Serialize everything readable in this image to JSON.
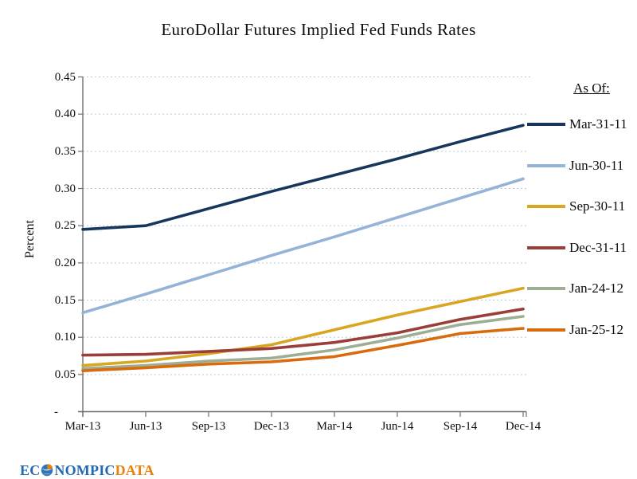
{
  "legend": {
    "header": "As Of:"
  },
  "logo": {
    "part1": "EC",
    "part2": "NOMPIC",
    "part3": "DATA",
    "blue": "#2268B2",
    "orange": "#E8820C"
  },
  "chart_data": {
    "type": "line",
    "title": "EuroDollar Futures Implied Fed Funds Rates",
    "xlabel": "",
    "ylabel": "Percent",
    "categories": [
      "Mar-13",
      "Jun-13",
      "Sep-13",
      "Dec-13",
      "Mar-14",
      "Jun-14",
      "Sep-14",
      "Dec-14"
    ],
    "ylim": [
      0,
      0.45
    ],
    "ytick_step": 0.05,
    "ytick_labels": [
      "0.45",
      "0.40",
      "0.35",
      "0.30",
      "0.25",
      "0.20",
      "0.15",
      "0.10",
      "0.05",
      "-"
    ],
    "grid": true,
    "gridline_color": "#AFCBE2",
    "axis_color": "#6F6F6F",
    "legend_position": "right",
    "legend_title": "As Of:",
    "series": [
      {
        "name": "Mar-31-11",
        "color": "#17365D",
        "values": [
          0.245,
          0.25,
          0.273,
          0.296,
          0.318,
          0.34,
          0.363,
          0.385
        ]
      },
      {
        "name": "Jun-30-11",
        "color": "#95B3D7",
        "values": [
          0.133,
          0.158,
          0.184,
          0.21,
          0.235,
          0.261,
          0.287,
          0.313
        ]
      },
      {
        "name": "Sep-30-11",
        "color": "#D9A621",
        "values": [
          0.062,
          0.068,
          0.078,
          0.09,
          0.11,
          0.13,
          0.148,
          0.166
        ]
      },
      {
        "name": "Dec-31-11",
        "color": "#9A3E38",
        "values": [
          0.076,
          0.077,
          0.081,
          0.085,
          0.093,
          0.106,
          0.124,
          0.138
        ]
      },
      {
        "name": "Jan-24-12",
        "color": "#9EAE94",
        "values": [
          0.058,
          0.062,
          0.068,
          0.072,
          0.083,
          0.099,
          0.117,
          0.128
        ]
      },
      {
        "name": "Jan-25-12",
        "color": "#D96B0C",
        "values": [
          0.055,
          0.059,
          0.064,
          0.067,
          0.074,
          0.089,
          0.105,
          0.112
        ]
      }
    ]
  }
}
